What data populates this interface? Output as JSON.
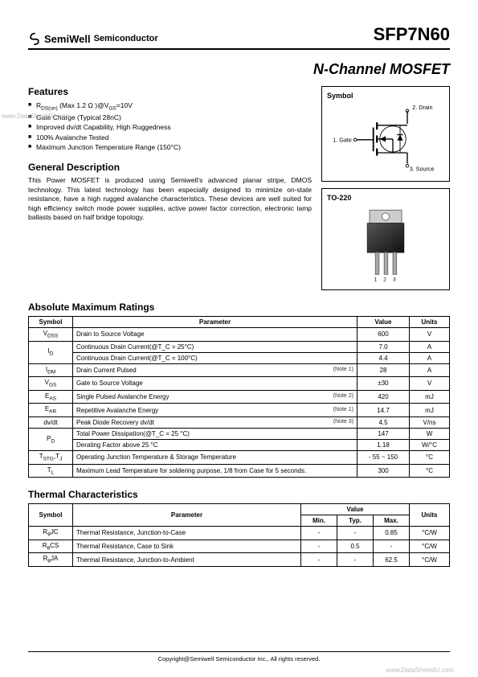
{
  "header": {
    "brand": "SemiWell",
    "brand_sub": "Semiconductor",
    "part_number": "SFP7N60"
  },
  "title": "N-Channel MOSFET",
  "features": {
    "heading": "Features",
    "items": [
      "R_DS(on) (Max 1.2 Ω )@V_GS=10V",
      "Gate Charge (Typical 28nC)",
      "Improved dv/dt Capability, High Ruggedness",
      "100% Avalanche Tested",
      "Maximum Junction Temperature Range (150°C)"
    ]
  },
  "general_desc": {
    "heading": "General Description",
    "text": "This Power MOSFET is produced using Semiwell's advanced planar stripe, DMOS technology. This latest technology has been especially designed to minimize on-state resistance, have a high rugged avalanche characteristics. These devices are well suited for high efficiency switch mode power supplies, active power factor correction, electronic lamp ballasts based on half bridge topology."
  },
  "symbol_box": {
    "label": "Symbol",
    "gate": "1. Gate",
    "drain": "2. Drain",
    "source": "3. Source"
  },
  "package_box": {
    "label": "TO-220",
    "pins": "1 2 3"
  },
  "abs_max": {
    "heading": "Absolute Maximum Ratings",
    "cols": [
      "Symbol",
      "Parameter",
      "Value",
      "Units"
    ],
    "rows": [
      {
        "sym": "V_DSS",
        "param": "Drain to Source Voltage",
        "note": "",
        "val": "600",
        "unit": "V"
      },
      {
        "sym": "I_D",
        "param": "Continuous Drain Current(@T_C = 25°C)",
        "note": "",
        "val": "7.0",
        "unit": "A",
        "rowspan": 2
      },
      {
        "sym": "",
        "param": "Continuous Drain Current(@T_C = 100°C)",
        "note": "",
        "val": "4.4",
        "unit": "A"
      },
      {
        "sym": "I_DM",
        "param": "Drain Current Pulsed",
        "note": "(Note 1)",
        "val": "28",
        "unit": "A"
      },
      {
        "sym": "V_GS",
        "param": "Gate to Source Voltage",
        "note": "",
        "val": "±30",
        "unit": "V"
      },
      {
        "sym": "E_AS",
        "param": "Single Pulsed Avalanche Energy",
        "note": "(Note 2)",
        "val": "420",
        "unit": "mJ"
      },
      {
        "sym": "E_AR",
        "param": "Repetitive Avalanche Energy",
        "note": "(Note 1)",
        "val": "14.7",
        "unit": "mJ"
      },
      {
        "sym": "dv/dt",
        "param": "Peak Diode Recovery dv/dt",
        "note": "(Note 3)",
        "val": "4.5",
        "unit": "V/ns"
      },
      {
        "sym": "P_D",
        "param": "Total Power Dissipation(@T_C = 25 °C)",
        "note": "",
        "val": "147",
        "unit": "W",
        "rowspan": 2
      },
      {
        "sym": "",
        "param": "Derating Factor above 25 °C",
        "note": "",
        "val": "1.18",
        "unit": "W/°C"
      },
      {
        "sym": "T_STG,T_J",
        "param": "Operating Junction Temperature & Storage Temperature",
        "note": "",
        "val": "- 55 ~ 150",
        "unit": "°C"
      },
      {
        "sym": "T_L",
        "param": "Maximum Lead Temperature for soldering purpose, 1/8 from Case for 5 seconds.",
        "note": "",
        "val": "300",
        "unit": "°C"
      }
    ]
  },
  "thermal": {
    "heading": "Thermal Characteristics",
    "cols": [
      "Symbol",
      "Parameter",
      "Value",
      "Units"
    ],
    "subcols": [
      "Min.",
      "Typ.",
      "Max."
    ],
    "rows": [
      {
        "sym": "R_θJC",
        "param": "Thermal Resistance, Junction-to-Case",
        "min": "-",
        "typ": "-",
        "max": "0.85",
        "unit": "°C/W"
      },
      {
        "sym": "R_θCS",
        "param": "Thermal Resistance, Case to Sink",
        "min": "-",
        "typ": "0.5",
        "max": "-",
        "unit": "°C/W"
      },
      {
        "sym": "R_θJA",
        "param": "Thermal Resistance, Junction-to-Ambient",
        "min": "-",
        "typ": "-",
        "max": "62.5",
        "unit": "°C/W"
      }
    ]
  },
  "footer": "Copyright@Semiwell Semiconductor Inc., All rights reserved.",
  "watermarks": {
    "left": "www.DataSheet4U.com",
    "bottom": "www.DataSheet4U.com"
  },
  "colors": {
    "text": "#000000",
    "border": "#000000",
    "background": "#ffffff",
    "watermark": "#bbbbbb"
  }
}
